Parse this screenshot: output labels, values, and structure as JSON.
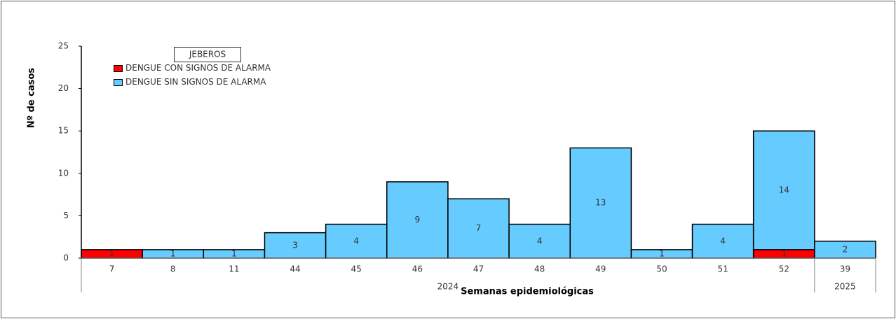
{
  "chart_data": {
    "type": "bar",
    "stacked": true,
    "legend_title": "JEBEROS",
    "x_label": "Semanas epidemiológicas",
    "y_label": "Nº de casos",
    "categories": [
      "7",
      "8",
      "11",
      "44",
      "45",
      "46",
      "47",
      "48",
      "49",
      "50",
      "51",
      "52",
      "39"
    ],
    "category_groups": [
      "2024",
      "2024",
      "2024",
      "2024",
      "2024",
      "2024",
      "2024",
      "2024",
      "2024",
      "2024",
      "2024",
      "2024",
      "2025"
    ],
    "series": [
      {
        "name": "DENGUE CON SIGNOS DE ALARMA",
        "color": "#ff0000",
        "values": [
          1,
          0,
          0,
          0,
          0,
          0,
          0,
          0,
          0,
          0,
          0,
          1,
          0
        ]
      },
      {
        "name": "DENGUE SIN SIGNOS DE ALARMA",
        "color": "#66ccff",
        "values": [
          0,
          1,
          1,
          3,
          4,
          9,
          7,
          4,
          13,
          1,
          4,
          14,
          2
        ]
      }
    ],
    "ylim": [
      0,
      25
    ],
    "yticks": [
      0,
      5,
      10,
      15,
      20,
      25
    ],
    "grid": false
  }
}
